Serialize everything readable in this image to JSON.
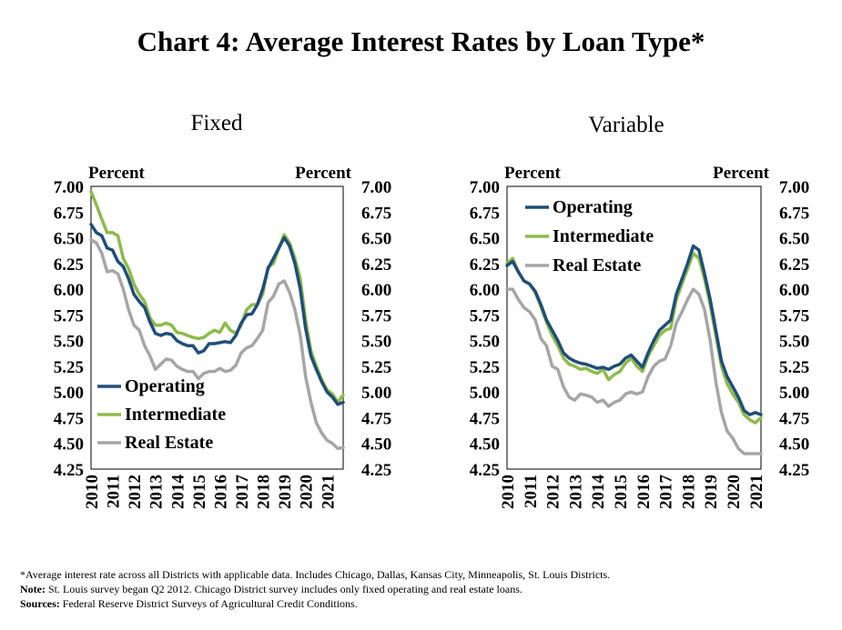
{
  "title": "Chart 4: Average Interest Rates by Loan Type*",
  "colors": {
    "operating": "#1f4e79",
    "intermediate": "#8dbb4a",
    "real_estate": "#a6a6a6"
  },
  "footnotes": {
    "asterisk": "*Average interest rate across all Districts with applicable data. Includes Chicago, Dallas, Kansas City, Minneapolis,  St. Louis Districts.",
    "note_label": "Note:",
    "note_text": " St. Louis survey began Q2 2012.  Chicago District survey includes  only fixed operating and real estate loans.",
    "sources_label": "Sources:",
    "sources_text": " Federal Reserve District Surveys of Agricultural Credit Conditions."
  },
  "chart_data": [
    {
      "type": "line",
      "title": "Fixed",
      "ylabel_left": "Percent",
      "ylabel_right": "Percent",
      "ylim": [
        4.25,
        7.0
      ],
      "y_ticks": [
        "7.00",
        "6.75",
        "6.50",
        "6.25",
        "6.00",
        "5.75",
        "5.50",
        "5.25",
        "5.00",
        "4.75",
        "4.50",
        "4.25"
      ],
      "x_start": 2010.0,
      "x_step": 0.25,
      "x_ticks": [
        "2010",
        "2011",
        "2012",
        "2013",
        "2014",
        "2015",
        "2016",
        "2017",
        "2018",
        "2019",
        "2020",
        "2021"
      ],
      "legend_position": "bottom-left",
      "series": [
        {
          "name": "Operating",
          "color_key": "operating",
          "values": [
            6.63,
            6.55,
            6.52,
            6.4,
            6.38,
            6.27,
            6.22,
            6.1,
            5.95,
            5.88,
            5.82,
            5.68,
            5.57,
            5.55,
            5.57,
            5.56,
            5.5,
            5.47,
            5.45,
            5.45,
            5.38,
            5.4,
            5.47,
            5.47,
            5.48,
            5.49,
            5.48,
            5.55,
            5.67,
            5.75,
            5.76,
            5.85,
            6.0,
            6.2,
            6.3,
            6.4,
            6.5,
            6.42,
            6.25,
            6.0,
            5.62,
            5.35,
            5.22,
            5.1,
            5.0,
            4.95,
            4.88,
            4.9
          ]
        },
        {
          "name": "Intermediate",
          "color_key": "intermediate",
          "values": [
            6.95,
            6.82,
            6.68,
            6.55,
            6.55,
            6.52,
            6.3,
            6.2,
            6.05,
            5.95,
            5.88,
            5.72,
            5.65,
            5.65,
            5.67,
            5.65,
            5.58,
            5.57,
            5.55,
            5.53,
            5.52,
            5.53,
            5.57,
            5.6,
            5.58,
            5.67,
            5.6,
            5.57,
            5.65,
            5.8,
            5.85,
            5.85,
            5.95,
            6.22,
            6.25,
            6.4,
            6.53,
            6.45,
            6.3,
            6.1,
            5.7,
            5.4,
            5.25,
            5.12,
            5.02,
            4.98,
            4.9,
            4.97
          ]
        },
        {
          "name": "Real Estate",
          "color_key": "real_estate",
          "values": [
            6.48,
            6.45,
            6.35,
            6.17,
            6.18,
            6.15,
            6.0,
            5.8,
            5.65,
            5.6,
            5.45,
            5.35,
            5.22,
            5.27,
            5.32,
            5.31,
            5.25,
            5.22,
            5.2,
            5.2,
            5.13,
            5.18,
            5.2,
            5.2,
            5.23,
            5.2,
            5.21,
            5.26,
            5.38,
            5.43,
            5.45,
            5.52,
            5.6,
            5.87,
            5.93,
            6.05,
            6.08,
            5.97,
            5.8,
            5.55,
            5.15,
            4.9,
            4.7,
            4.6,
            4.53,
            4.5,
            4.45,
            4.46
          ]
        }
      ]
    },
    {
      "type": "line",
      "title": "Variable",
      "ylabel_left": "Percent",
      "ylabel_right": "Percent",
      "ylim": [
        4.25,
        7.0
      ],
      "y_ticks": [
        "7.00",
        "6.75",
        "6.50",
        "6.25",
        "6.00",
        "5.75",
        "5.50",
        "5.25",
        "5.00",
        "4.75",
        "4.50",
        "4.25"
      ],
      "x_start": 2010.0,
      "x_step": 0.25,
      "x_ticks": [
        "2010",
        "2011",
        "2012",
        "2013",
        "2014",
        "2015",
        "2016",
        "2017",
        "2018",
        "2019",
        "2020",
        "2021"
      ],
      "legend_position": "top-left",
      "series": [
        {
          "name": "Operating",
          "color_key": "operating",
          "values": [
            6.23,
            6.27,
            6.17,
            6.08,
            6.05,
            5.98,
            5.85,
            5.7,
            5.6,
            5.5,
            5.38,
            5.33,
            5.3,
            5.28,
            5.27,
            5.25,
            5.23,
            5.24,
            5.22,
            5.25,
            5.27,
            5.33,
            5.36,
            5.3,
            5.24,
            5.38,
            5.5,
            5.6,
            5.65,
            5.7,
            5.95,
            6.1,
            6.25,
            6.42,
            6.38,
            6.15,
            5.9,
            5.6,
            5.3,
            5.15,
            5.05,
            4.95,
            4.82,
            4.78,
            4.8,
            4.78
          ]
        },
        {
          "name": "Intermediate",
          "color_key": "intermediate",
          "values": [
            6.25,
            6.3,
            6.17,
            6.08,
            6.05,
            5.97,
            5.83,
            5.68,
            5.55,
            5.45,
            5.33,
            5.27,
            5.25,
            5.22,
            5.23,
            5.2,
            5.18,
            5.22,
            5.12,
            5.17,
            5.2,
            5.28,
            5.33,
            5.25,
            5.2,
            5.35,
            5.45,
            5.55,
            5.6,
            5.62,
            5.9,
            6.05,
            6.2,
            6.35,
            6.3,
            6.1,
            5.85,
            5.55,
            5.25,
            5.08,
            4.98,
            4.9,
            4.78,
            4.73,
            4.7,
            4.75
          ]
        },
        {
          "name": "Real Estate",
          "color_key": "real_estate",
          "values": [
            6.0,
            6.0,
            5.9,
            5.82,
            5.78,
            5.7,
            5.52,
            5.45,
            5.25,
            5.22,
            5.05,
            4.95,
            4.92,
            4.98,
            4.97,
            4.95,
            4.9,
            4.92,
            4.86,
            4.9,
            4.92,
            4.98,
            5.0,
            4.98,
            5.0,
            5.15,
            5.25,
            5.3,
            5.32,
            5.45,
            5.67,
            5.78,
            5.9,
            6.0,
            5.95,
            5.8,
            5.5,
            5.1,
            4.8,
            4.62,
            4.55,
            4.45,
            4.4,
            4.4,
            4.4,
            4.4
          ]
        }
      ]
    }
  ]
}
